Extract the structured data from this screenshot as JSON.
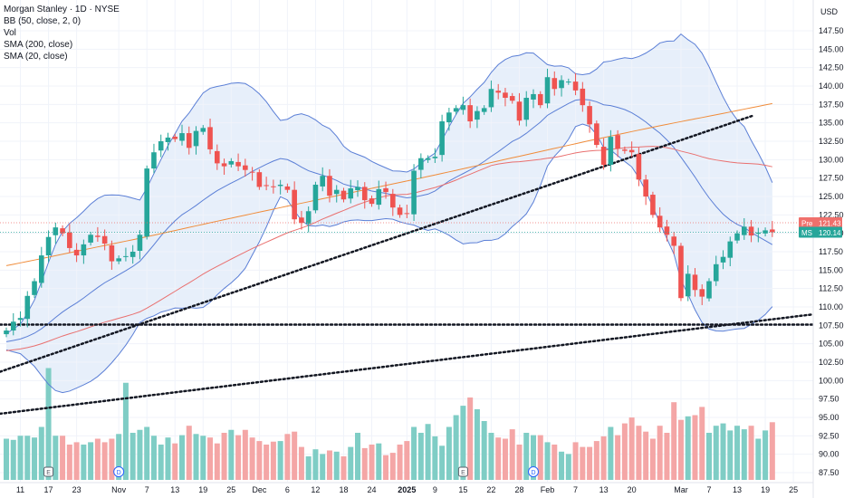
{
  "legend": {
    "title": "Morgan Stanley · 1D · NYSE",
    "bb": "BB (50, close, 2, 0)",
    "vol": "Vol",
    "sma200": "SMA (200, close)",
    "sma20": "SMA (20, close)"
  },
  "currency": "USD",
  "price_tags": {
    "pre": {
      "label": "Pre",
      "value": "121.43",
      "price": 121.43
    },
    "last": {
      "label": "MS",
      "value": "120.14",
      "price": 120.14
    }
  },
  "colors": {
    "up": "#26a69a",
    "down": "#ef5350",
    "up_vol": "#7fcdc5",
    "down_vol": "#f4a6a6",
    "bb_line": "#5b7fd6",
    "bb_fill": "#dde8f8",
    "sma200": "#f08c3a",
    "sma50": "#e9706f",
    "axis_text": "#131722",
    "pre_tag": "#f0706c",
    "last_tag": "#26a69a"
  },
  "chart_data": {
    "type": "candlestick",
    "ylim": [
      86.5,
      150.5
    ],
    "yticks": [
      "147.50",
      "145.00",
      "142.50",
      "140.00",
      "137.50",
      "135.00",
      "132.50",
      "130.00",
      "127.50",
      "125.00",
      "122.50",
      "120.00",
      "117.50",
      "115.00",
      "112.50",
      "110.00",
      "107.50",
      "105.00",
      "102.50",
      "100.00",
      "97.50",
      "95.00",
      "92.50",
      "90.00",
      "87.50"
    ],
    "dates": [
      {
        "label": "11",
        "i": 2,
        "bold": false
      },
      {
        "label": "17",
        "i": 6,
        "bold": false
      },
      {
        "label": "23",
        "i": 10,
        "bold": false
      },
      {
        "label": "Nov",
        "i": 16,
        "bold": false
      },
      {
        "label": "7",
        "i": 20,
        "bold": false
      },
      {
        "label": "13",
        "i": 24,
        "bold": false
      },
      {
        "label": "19",
        "i": 28,
        "bold": false
      },
      {
        "label": "25",
        "i": 32,
        "bold": false
      },
      {
        "label": "Dec",
        "i": 36,
        "bold": false
      },
      {
        "label": "6",
        "i": 40,
        "bold": false
      },
      {
        "label": "12",
        "i": 44,
        "bold": false
      },
      {
        "label": "18",
        "i": 48,
        "bold": false
      },
      {
        "label": "24",
        "i": 52,
        "bold": false
      },
      {
        "label": "2025",
        "i": 57,
        "bold": true
      },
      {
        "label": "9",
        "i": 61,
        "bold": false
      },
      {
        "label": "15",
        "i": 65,
        "bold": false
      },
      {
        "label": "22",
        "i": 69,
        "bold": false
      },
      {
        "label": "28",
        "i": 73,
        "bold": false
      },
      {
        "label": "Feb",
        "i": 77,
        "bold": false
      },
      {
        "label": "7",
        "i": 81,
        "bold": false
      },
      {
        "label": "13",
        "i": 85,
        "bold": false
      },
      {
        "label": "20",
        "i": 89,
        "bold": false
      },
      {
        "label": "Mar",
        "i": 96,
        "bold": false
      },
      {
        "label": "7",
        "i": 100,
        "bold": false
      },
      {
        "label": "13",
        "i": 104,
        "bold": false
      },
      {
        "label": "19",
        "i": 108,
        "bold": false
      },
      {
        "label": "25",
        "i": 112,
        "bold": false
      }
    ],
    "events": [
      {
        "label": "E",
        "i": 6
      },
      {
        "label": "D",
        "i": 16
      },
      {
        "label": "E",
        "i": 65
      },
      {
        "label": "D",
        "i": 75
      }
    ],
    "close": [
      106.8,
      108.0,
      108.5,
      111.5,
      113.5,
      117.0,
      119.5,
      120.8,
      120.0,
      118.0,
      117.0,
      118.5,
      119.8,
      119.5,
      118.6,
      116.2,
      116.6,
      116.9,
      117.5,
      119.8,
      128.8,
      131.0,
      132.5,
      133.0,
      132.8,
      133.6,
      131.6,
      133.9,
      134.3,
      131.4,
      129.5,
      129.1,
      129.8,
      129.1,
      128.6,
      128.3,
      126.3,
      126.5,
      126.3,
      126.6,
      125.9,
      121.9,
      121.4,
      123.0,
      126.6,
      127.8,
      125.1,
      125.9,
      124.6,
      126.1,
      126.3,
      124.5,
      124.0,
      126.0,
      125.6,
      123.5,
      122.5,
      122.7,
      128.5,
      130.2,
      130.2,
      130.4,
      135.2,
      136.4,
      137.0,
      137.4,
      135.2,
      136.6,
      137.0,
      139.6,
      139.1,
      138.4,
      138.0,
      135.3,
      138.4,
      138.9,
      137.4,
      141.2,
      139.6,
      140.8,
      140.6,
      139.4,
      137.4,
      134.8,
      132.0,
      129.3,
      133.1,
      131.5,
      131.2,
      131.0,
      127.3,
      125.0,
      122.5,
      120.8,
      119.8,
      118.3,
      111.2,
      114.5,
      112.3,
      111.4,
      113.5,
      115.8,
      116.8,
      118.9,
      120.0,
      120.9,
      119.7,
      120.1,
      120.4,
      120.14
    ],
    "volume": [
      7.0,
      6.8,
      7.5,
      7.5,
      7.2,
      9.0,
      19.0,
      7.5,
      7.5,
      6.0,
      6.4,
      6.0,
      6.4,
      7.0,
      6.4,
      7.0,
      7.8,
      16.5,
      8.0,
      8.5,
      9.0,
      7.5,
      6.0,
      7.2,
      6.2,
      7.6,
      9.2,
      7.8,
      7.5,
      7.2,
      6.2,
      8.0,
      8.5,
      7.6,
      8.5,
      7.2,
      6.6,
      6.0,
      6.5,
      6.6,
      7.8,
      8.2,
      5.6,
      4.0,
      5.2,
      4.4,
      5.0,
      4.8,
      4.0,
      5.6,
      8.0,
      5.4,
      6.0,
      6.2,
      4.2,
      4.6,
      6.0,
      6.6,
      9.0,
      8.0,
      9.5,
      7.4,
      5.8,
      9.0,
      11.0,
      12.6,
      14.0,
      12.0,
      10.0,
      8.0,
      7.2,
      7.0,
      8.6,
      6.0,
      8.0,
      7.6,
      7.6,
      6.4,
      6.0,
      4.8,
      4.4,
      6.4,
      5.6,
      5.6,
      6.6,
      7.4,
      9.0,
      7.6,
      9.6,
      10.6,
      9.2,
      8.2,
      7.0,
      9.2,
      8.0,
      13.2,
      10.2,
      10.8,
      11.0,
      12.4,
      8.0,
      9.2,
      9.6,
      8.4,
      9.2,
      8.6,
      9.2,
      7.0,
      8.4,
      9.8
    ]
  }
}
